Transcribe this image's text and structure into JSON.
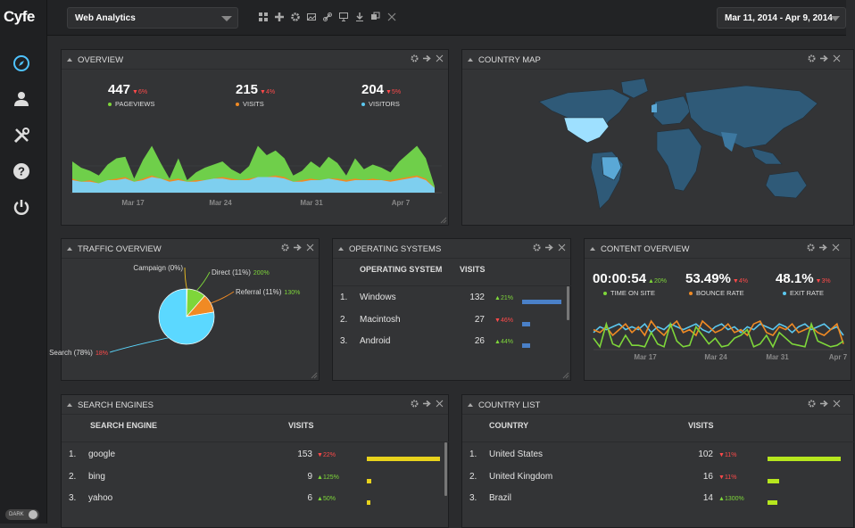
{
  "app": {
    "logo": "Cyfe",
    "dark_label": "DARK"
  },
  "sidebar": {
    "icons": [
      "compass-icon",
      "user-icon",
      "tools-icon",
      "help-icon",
      "power-icon"
    ]
  },
  "topbar": {
    "dashboard": "Web Analytics",
    "date_range": "Mar 11, 2014 - Apr 9, 2014",
    "tools": [
      "grid-icon",
      "plus-icon",
      "gear-icon",
      "image-icon",
      "link-icon",
      "monitor-icon",
      "download-icon",
      "copy-icon",
      "close-icon"
    ]
  },
  "colors": {
    "accent_blue": "#5bc8f0",
    "green": "#7ed63a",
    "orange": "#f08a24",
    "red": "#ff4a4a",
    "yellow": "#e8d21c",
    "lime": "#b6e61e",
    "bar_blue": "#4a80c8"
  },
  "overview": {
    "title": "OVERVIEW",
    "stats": [
      {
        "value": "447",
        "change": "6%",
        "dir": "down",
        "label": "PAGEVIEWS",
        "color": "#7ed63a"
      },
      {
        "value": "215",
        "change": "4%",
        "dir": "down",
        "label": "VISITS",
        "color": "#f08a24"
      },
      {
        "value": "204",
        "change": "5%",
        "dir": "down",
        "label": "VISITORS",
        "color": "#5bc8f0"
      }
    ],
    "xticks": [
      "Mar 17",
      "Mar 24",
      "Mar 31",
      "Apr 7"
    ],
    "series": {
      "pageviews": [
        20,
        16,
        14,
        11,
        18,
        22,
        23,
        9,
        21,
        30,
        19,
        9,
        22,
        8,
        13,
        16,
        18,
        20,
        15,
        12,
        17,
        30,
        24,
        27,
        22,
        11,
        14,
        20,
        16,
        23,
        19,
        11,
        22,
        15,
        18,
        16,
        13,
        20,
        25,
        30,
        22,
        4
      ],
      "visits": [
        9,
        7,
        8,
        6,
        8,
        9,
        10,
        7,
        9,
        11,
        9,
        8,
        9,
        7,
        8,
        8,
        9,
        10,
        9,
        8,
        9,
        10,
        10,
        11,
        10,
        7,
        8,
        9,
        8,
        9,
        9,
        8,
        9,
        8,
        9,
        8,
        8,
        9,
        10,
        11,
        9,
        3
      ],
      "visitors": [
        8,
        7,
        7,
        6,
        8,
        8,
        9,
        7,
        8,
        10,
        9,
        7,
        8,
        7,
        7,
        8,
        9,
        9,
        8,
        8,
        8,
        10,
        10,
        10,
        9,
        7,
        7,
        8,
        8,
        9,
        8,
        7,
        8,
        8,
        8,
        8,
        7,
        8,
        9,
        10,
        8,
        3
      ]
    }
  },
  "country_map": {
    "title": "COUNTRY MAP"
  },
  "traffic": {
    "title": "TRAFFIC OVERVIEW",
    "slices": [
      {
        "label": "Campaign (0%)",
        "change": "",
        "pct": 0.4,
        "color": "#f0c020"
      },
      {
        "label": "Direct (11%)",
        "change": "200%",
        "dir": "up",
        "pct": 11,
        "color": "#7ed63a"
      },
      {
        "label": "Referral (11%)",
        "change": "130%",
        "dir": "up",
        "pct": 11,
        "color": "#f08a24"
      },
      {
        "label": "Search (78%)",
        "change": "18%",
        "dir": "down",
        "pct": 77.6,
        "color": "#5bd8ff"
      }
    ]
  },
  "os": {
    "title": "OPERATING SYSTEMS",
    "col1": "OPERATING SYSTEM",
    "col2": "VISITS",
    "rows": [
      {
        "n": "1.",
        "name": "Windows",
        "visits": "132",
        "change": "21%",
        "dir": "up",
        "share": 1.0
      },
      {
        "n": "2.",
        "name": "Macintosh",
        "visits": "27",
        "change": "46%",
        "dir": "down",
        "share": 0.2
      },
      {
        "n": "3.",
        "name": "Android",
        "visits": "26",
        "change": "44%",
        "dir": "up",
        "share": 0.2
      }
    ]
  },
  "content": {
    "title": "CONTENT OVERVIEW",
    "stats": [
      {
        "value": "00:00:54",
        "change": "20%",
        "dir": "up",
        "label": "TIME ON SITE",
        "color": "#7ed63a"
      },
      {
        "value": "53.49%",
        "change": "4%",
        "dir": "down",
        "label": "BOUNCE RATE",
        "color": "#f08a24"
      },
      {
        "value": "48.1%",
        "change": "3%",
        "dir": "down",
        "label": "EXIT RATE",
        "color": "#5bc8f0"
      }
    ],
    "xticks": [
      "Mar 17",
      "Mar 24",
      "Mar 31",
      "Apr 7"
    ],
    "series": {
      "time": [
        8,
        2,
        18,
        4,
        2,
        10,
        3,
        3,
        2,
        12,
        4,
        2,
        18,
        6,
        2,
        3,
        16,
        10,
        4,
        8,
        2,
        3,
        8,
        10,
        14,
        2,
        4,
        10,
        2,
        12,
        8,
        4,
        3,
        2,
        18,
        6,
        4,
        2,
        3,
        6
      ],
      "bounce": [
        14,
        12,
        16,
        10,
        14,
        18,
        12,
        16,
        10,
        20,
        14,
        10,
        16,
        20,
        12,
        14,
        10,
        20,
        16,
        12,
        14,
        18,
        12,
        14,
        10,
        18,
        20,
        12,
        10,
        16,
        14,
        18,
        12,
        14,
        16,
        12,
        10,
        14,
        18,
        4
      ],
      "exit": [
        12,
        16,
        14,
        16,
        18,
        14,
        16,
        14,
        18,
        12,
        16,
        14,
        18,
        16,
        14,
        16,
        18,
        14,
        12,
        16,
        18,
        14,
        16,
        12,
        16,
        14,
        18,
        16,
        14,
        18,
        16,
        12,
        16,
        18,
        14,
        16,
        18,
        14,
        16,
        10
      ]
    }
  },
  "search": {
    "title": "SEARCH ENGINES",
    "col1": "SEARCH ENGINE",
    "col2": "VISITS",
    "rows": [
      {
        "n": "1.",
        "name": "google",
        "visits": "153",
        "change": "22%",
        "dir": "down",
        "share": 1.0
      },
      {
        "n": "2.",
        "name": "bing",
        "visits": "9",
        "change": "125%",
        "dir": "up",
        "share": 0.06
      },
      {
        "n": "3.",
        "name": "yahoo",
        "visits": "6",
        "change": "50%",
        "dir": "up",
        "share": 0.04
      }
    ]
  },
  "countries": {
    "title": "COUNTRY LIST",
    "col1": "COUNTRY",
    "col2": "VISITS",
    "rows": [
      {
        "n": "1.",
        "name": "United States",
        "visits": "102",
        "change": "11%",
        "dir": "down",
        "share": 1.0
      },
      {
        "n": "2.",
        "name": "United Kingdom",
        "visits": "16",
        "change": "11%",
        "dir": "down",
        "share": 0.16
      },
      {
        "n": "3.",
        "name": "Brazil",
        "visits": "14",
        "change": "1300%",
        "dir": "up",
        "share": 0.14
      }
    ]
  }
}
